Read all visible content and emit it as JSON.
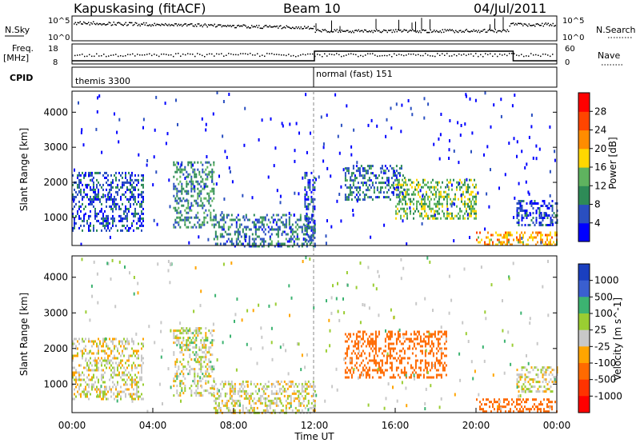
{
  "header": {
    "radar": "Kapuskasing (fitACF)",
    "beam": "Beam 10",
    "date": "04/Jul/2011"
  },
  "noise_panel": {
    "left_label": "N.Sky",
    "right_label": "N.Search",
    "left_ticks": [
      "10^5",
      "10^0"
    ],
    "right_ticks": [
      "10^5",
      "10^0"
    ]
  },
  "freq_panel": {
    "label_top": "Freq.",
    "label_unit": "[MHz]",
    "left_ticks": [
      "18",
      "8"
    ],
    "right_ticks": [
      "60",
      "0"
    ],
    "right_label": "Nave"
  },
  "cpid_panel": {
    "label": "CPID",
    "programs": [
      {
        "name": "themis 3300",
        "start_h": 0,
        "end_h": 12
      },
      {
        "name": "normal (fast) 151",
        "start_h": 12,
        "end_h": 24
      }
    ]
  },
  "colors": {
    "power_scale": [
      "#0000ff",
      "#2a4fc0",
      "#2e8b57",
      "#5fb35f",
      "#ffd700",
      "#ff8c00",
      "#ff4500",
      "#ff0000"
    ],
    "velocity_scale": [
      "#1a3fbf",
      "#3a5fd0",
      "#3cb371",
      "#9acd32",
      "#c8c8c8",
      "#ffa500",
      "#ff6a00",
      "#ff3300",
      "#ff0000"
    ]
  },
  "chart_data": [
    {
      "type": "heatmap",
      "name": "power",
      "ylabel": "Slant Range [km]",
      "ylim": [
        200,
        4600
      ],
      "y_ticks": [
        1000,
        2000,
        3000,
        4000
      ],
      "xlim_hours": [
        0,
        24
      ],
      "colorbar": {
        "label": "Power [dB]",
        "ticks": [
          "4",
          "8",
          "12",
          "16",
          "20",
          "24",
          "28"
        ],
        "range": [
          0,
          32
        ]
      },
      "echo_regions": [
        {
          "start_h": 0.0,
          "end_h": 3.5,
          "range_lo": 600,
          "range_hi": 2300,
          "value": 6
        },
        {
          "start_h": 5.0,
          "end_h": 7.0,
          "range_lo": 700,
          "range_hi": 2600,
          "value": 10
        },
        {
          "start_h": 7.0,
          "end_h": 12.0,
          "range_lo": 200,
          "range_hi": 1100,
          "value": 8
        },
        {
          "start_h": 11.5,
          "end_h": 12.0,
          "range_lo": 300,
          "range_hi": 2300,
          "value": 6
        },
        {
          "start_h": 13.5,
          "end_h": 16.5,
          "range_lo": 1500,
          "range_hi": 2500,
          "value": 8
        },
        {
          "start_h": 16.0,
          "end_h": 20.0,
          "range_lo": 1000,
          "range_hi": 2100,
          "value": 14
        },
        {
          "start_h": 20.0,
          "end_h": 24.0,
          "range_lo": 200,
          "range_hi": 600,
          "value": 20
        },
        {
          "start_h": 22.0,
          "end_h": 24.0,
          "range_lo": 800,
          "range_hi": 1500,
          "value": 6
        }
      ]
    },
    {
      "type": "heatmap",
      "name": "velocity",
      "ylabel": "Slant Range [km]",
      "ylim": [
        200,
        4600
      ],
      "y_ticks": [
        1000,
        2000,
        3000,
        4000
      ],
      "xlim_hours": [
        0,
        24
      ],
      "x_ticks": [
        "00:00",
        "04:00",
        "08:00",
        "12:00",
        "16:00",
        "20:00",
        "00:00"
      ],
      "xlabel": "Time UT",
      "colorbar": {
        "label": "Velocity [m s^-1]",
        "ticks": [
          "1000",
          "500",
          "100",
          "25",
          "-25",
          "-100",
          "-500",
          "-1000"
        ]
      },
      "echo_regions": [
        {
          "start_h": 0.0,
          "end_h": 3.5,
          "range_lo": 600,
          "range_hi": 2300,
          "value": 0
        },
        {
          "start_h": 5.0,
          "end_h": 7.0,
          "range_lo": 700,
          "range_hi": 2600,
          "value": 10
        },
        {
          "start_h": 7.0,
          "end_h": 12.0,
          "range_lo": 200,
          "range_hi": 1100,
          "value": 0
        },
        {
          "start_h": 13.5,
          "end_h": 18.5,
          "range_lo": 1200,
          "range_hi": 2500,
          "value": -300
        },
        {
          "start_h": 20.0,
          "end_h": 24.0,
          "range_lo": 200,
          "range_hi": 600,
          "value": -400
        },
        {
          "start_h": 22.0,
          "end_h": 24.0,
          "range_lo": 800,
          "range_hi": 1500,
          "value": 0
        }
      ]
    }
  ]
}
